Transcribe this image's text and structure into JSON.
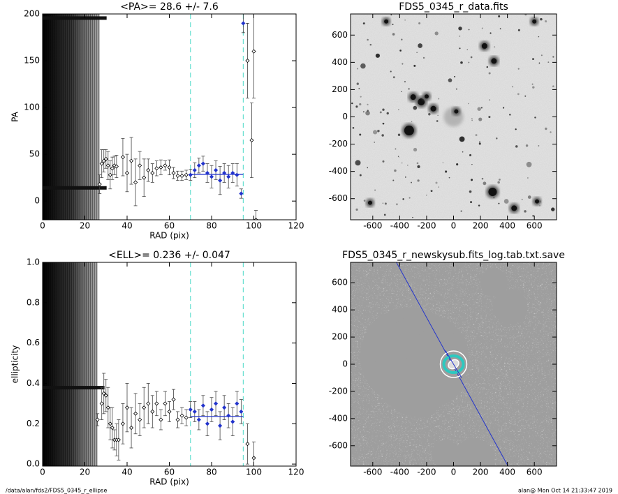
{
  "chart_data": [
    {
      "type": "scatter",
      "title": "<PA>=  28.6 +/-   7.6",
      "xlabel": "RAD (pix)",
      "ylabel": "PA",
      "xlim": [
        0,
        120
      ],
      "ylim": [
        -20,
        200
      ],
      "xticks": [
        0,
        20,
        40,
        60,
        80,
        100,
        120
      ],
      "yticks": [
        0,
        50,
        100,
        150,
        200
      ],
      "vlines": [
        70,
        95
      ],
      "fit_y": 28.6,
      "color": "#000000",
      "fit_color": "#2233cc",
      "vline_color": "#66e0d0",
      "x": [
        27,
        28,
        29,
        30,
        31,
        32,
        33,
        34,
        35,
        38,
        40,
        42,
        44,
        46,
        48,
        50,
        52,
        54,
        56,
        58,
        60,
        62,
        64,
        66,
        68,
        70,
        72,
        74,
        76,
        78,
        80,
        82,
        84,
        86,
        88,
        90,
        92,
        94,
        95,
        97,
        99,
        100,
        101
      ],
      "series": [
        {
          "values": [
            18,
            40,
            43,
            45,
            38,
            28,
            35,
            38,
            37,
            47,
            30,
            43,
            20,
            38,
            25,
            33,
            30,
            35,
            36,
            38,
            36,
            30,
            27,
            27,
            28,
            28,
            33,
            38,
            40,
            30,
            26,
            33,
            22,
            30,
            26,
            30,
            28,
            8,
            190,
            150,
            65,
            160,
            -20
          ],
          "errors": [
            10,
            15,
            12,
            10,
            15,
            15,
            12,
            10,
            12,
            20,
            20,
            25,
            25,
            15,
            20,
            12,
            10,
            8,
            8,
            5,
            8,
            6,
            5,
            5,
            5,
            6,
            8,
            8,
            8,
            10,
            12,
            10,
            15,
            10,
            12,
            10,
            12,
            5,
            10,
            40,
            40,
            50,
            10
          ]
        }
      ]
    },
    {
      "type": "scatter",
      "title": "<ELL>= 0.236 +/-  0.047",
      "xlabel": "RAD (pix)",
      "ylabel": "ellipticity",
      "xlim": [
        0,
        120
      ],
      "ylim": [
        -0.01,
        1.0
      ],
      "xticks": [
        0,
        20,
        40,
        60,
        80,
        100,
        120
      ],
      "yticks": [
        {
          "value": 0,
          "label": "0.0"
        },
        0.2,
        0.4,
        0.6,
        0.8,
        {
          "value": 1,
          "label": "1.0"
        }
      ],
      "vlines": [
        70,
        95
      ],
      "fit_y": 0.236,
      "color": "#000000",
      "fit_color": "#2233cc",
      "vline_color": "#66e0d0",
      "x": [
        26,
        28,
        29,
        30,
        31,
        32,
        33,
        34,
        35,
        36,
        38,
        40,
        42,
        44,
        46,
        48,
        50,
        52,
        54,
        56,
        58,
        60,
        62,
        64,
        66,
        68,
        70,
        72,
        74,
        76,
        78,
        80,
        82,
        84,
        86,
        88,
        90,
        92,
        94,
        97,
        100
      ],
      "series": [
        {
          "values": [
            0.22,
            0.3,
            0.35,
            0.34,
            0.28,
            0.2,
            0.18,
            0.12,
            0.12,
            0.12,
            0.2,
            0.28,
            0.18,
            0.25,
            0.22,
            0.28,
            0.3,
            0.26,
            0.3,
            0.22,
            0.3,
            0.26,
            0.32,
            0.22,
            0.24,
            0.23,
            0.27,
            0.26,
            0.22,
            0.29,
            0.2,
            0.27,
            0.3,
            0.19,
            0.28,
            0.24,
            0.21,
            0.3,
            0.26,
            0.1,
            0.03
          ],
          "errors": [
            0.03,
            0.08,
            0.1,
            0.08,
            0.1,
            0.08,
            0.1,
            0.05,
            0.08,
            0.1,
            0.1,
            0.12,
            0.1,
            0.1,
            0.08,
            0.1,
            0.1,
            0.08,
            0.06,
            0.05,
            0.06,
            0.05,
            0.05,
            0.04,
            0.04,
            0.04,
            0.04,
            0.05,
            0.05,
            0.05,
            0.06,
            0.06,
            0.06,
            0.07,
            0.06,
            0.06,
            0.07,
            0.06,
            0.06,
            0.1,
            0.08
          ]
        }
      ]
    },
    {
      "type": "image",
      "title": "FDS5_0345_r_data.fits",
      "variant": "data",
      "xlim": [
        -765,
        765
      ],
      "ylim": [
        -755,
        755
      ],
      "xticks": [
        -600,
        -400,
        -200,
        0,
        200,
        400,
        600
      ],
      "yticks": [
        -600,
        -400,
        -200,
        0,
        200,
        400,
        600
      ]
    },
    {
      "type": "image",
      "title": "FDS5_0345_r_newskysub.fits_log.tab.txt.save",
      "variant": "model",
      "xlim": [
        -765,
        765
      ],
      "ylim": [
        -750,
        750
      ],
      "xticks": [
        -600,
        -400,
        -200,
        0,
        200,
        400,
        600
      ],
      "yticks": [
        -600,
        -400,
        -200,
        0,
        200,
        400,
        600
      ]
    }
  ],
  "footer": {
    "left": "/data/alan/fds2/FDS5_0345_r_ellipse",
    "right": "alan@  Mon Oct 14 21:33:47 2019"
  }
}
